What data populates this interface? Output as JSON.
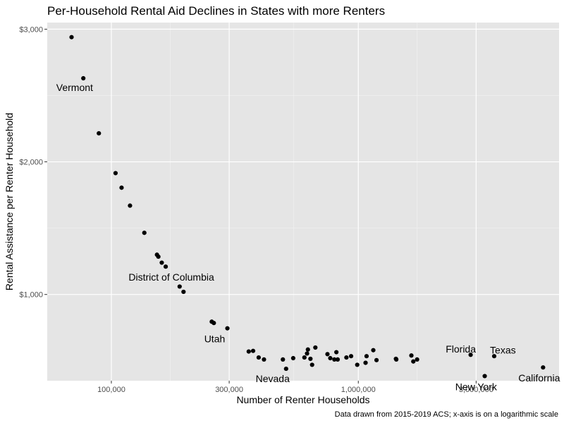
{
  "chart_data": {
    "type": "scatter",
    "title": "Per-Household Rental Aid Declines in States with more Renters",
    "xlabel": "Number of Renter Households",
    "ylabel": "Rental Assistance per Renter Household",
    "caption": "Data drawn from 2015-2019 ACS; x-axis is on a logarithmic scale",
    "x_scale": "log10",
    "xlim": [
      55000,
      6500000
    ],
    "ylim": [
      350,
      3050
    ],
    "x_ticks": [
      {
        "value": 100000,
        "label": "100,000"
      },
      {
        "value": 300000,
        "label": "300,000"
      },
      {
        "value": 1000000,
        "label": "1,000,000"
      },
      {
        "value": 3000000,
        "label": "3,000,000"
      }
    ],
    "y_ticks": [
      {
        "value": 1000,
        "label": "$1,000"
      },
      {
        "value": 2000,
        "label": "$2,000"
      },
      {
        "value": 3000,
        "label": "$3,000"
      }
    ],
    "grid": true,
    "point_color": "#000000",
    "panel_background": "#e5e5e5",
    "points": [
      {
        "x": 69000,
        "y": 2940
      },
      {
        "x": 77000,
        "y": 2630
      },
      {
        "x": 89000,
        "y": 2215
      },
      {
        "x": 104000,
        "y": 1915
      },
      {
        "x": 110000,
        "y": 1805
      },
      {
        "x": 119000,
        "y": 1670
      },
      {
        "x": 136000,
        "y": 1465
      },
      {
        "x": 153000,
        "y": 1300
      },
      {
        "x": 155000,
        "y": 1285
      },
      {
        "x": 160000,
        "y": 1240
      },
      {
        "x": 166000,
        "y": 1210
      },
      {
        "x": 189000,
        "y": 1060
      },
      {
        "x": 196000,
        "y": 1020
      },
      {
        "x": 255000,
        "y": 795
      },
      {
        "x": 260000,
        "y": 785
      },
      {
        "x": 295000,
        "y": 745
      },
      {
        "x": 360000,
        "y": 570
      },
      {
        "x": 375000,
        "y": 575
      },
      {
        "x": 395000,
        "y": 525
      },
      {
        "x": 415000,
        "y": 510
      },
      {
        "x": 495000,
        "y": 510
      },
      {
        "x": 510000,
        "y": 440
      },
      {
        "x": 545000,
        "y": 520
      },
      {
        "x": 605000,
        "y": 525
      },
      {
        "x": 620000,
        "y": 555
      },
      {
        "x": 625000,
        "y": 585
      },
      {
        "x": 640000,
        "y": 515
      },
      {
        "x": 650000,
        "y": 470
      },
      {
        "x": 670000,
        "y": 600
      },
      {
        "x": 750000,
        "y": 550
      },
      {
        "x": 770000,
        "y": 520
      },
      {
        "x": 800000,
        "y": 510
      },
      {
        "x": 815000,
        "y": 565
      },
      {
        "x": 825000,
        "y": 510
      },
      {
        "x": 895000,
        "y": 525
      },
      {
        "x": 935000,
        "y": 535
      },
      {
        "x": 990000,
        "y": 470
      },
      {
        "x": 1070000,
        "y": 485
      },
      {
        "x": 1080000,
        "y": 535
      },
      {
        "x": 1150000,
        "y": 580
      },
      {
        "x": 1185000,
        "y": 505
      },
      {
        "x": 1420000,
        "y": 515
      },
      {
        "x": 1425000,
        "y": 510
      },
      {
        "x": 1640000,
        "y": 540
      },
      {
        "x": 1670000,
        "y": 495
      },
      {
        "x": 1730000,
        "y": 510
      },
      {
        "x": 2850000,
        "y": 545
      },
      {
        "x": 3250000,
        "y": 385
      },
      {
        "x": 3550000,
        "y": 535
      },
      {
        "x": 5600000,
        "y": 450
      }
    ],
    "annotations": [
      {
        "label": "Vermont",
        "x": 71000,
        "y": 2560
      },
      {
        "label": "District of Columbia",
        "x": 175000,
        "y": 1130
      },
      {
        "label": "Utah",
        "x": 262000,
        "y": 665
      },
      {
        "label": "Nevada",
        "x": 450000,
        "y": 365
      },
      {
        "label": "Florida",
        "x": 2600000,
        "y": 590
      },
      {
        "label": "New York",
        "x": 3000000,
        "y": 305
      },
      {
        "label": "Texas",
        "x": 3850000,
        "y": 580
      },
      {
        "label": "California",
        "x": 5400000,
        "y": 370
      }
    ]
  }
}
